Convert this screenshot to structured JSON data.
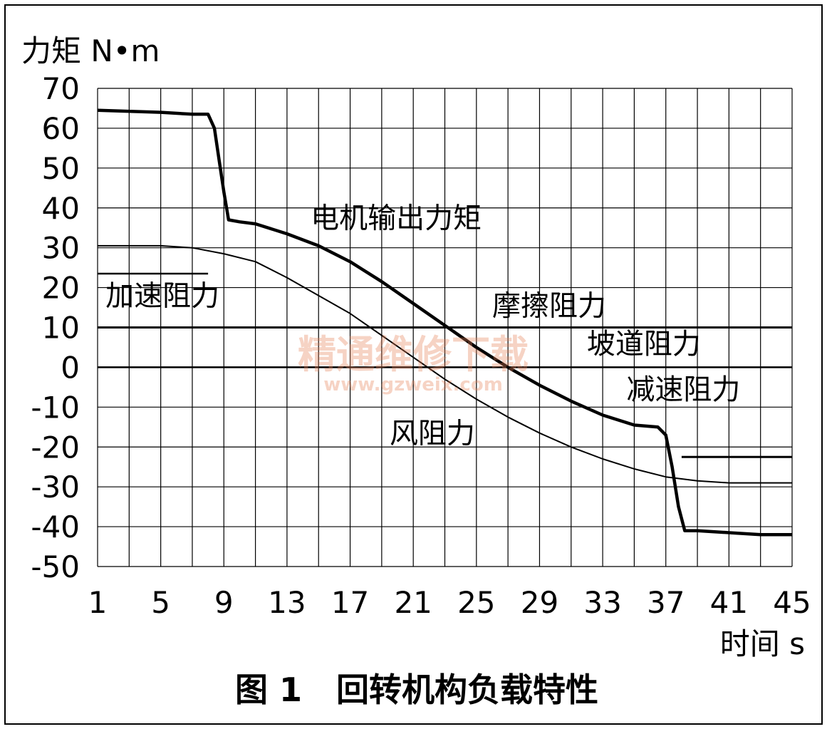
{
  "chart_data": {
    "type": "line",
    "caption": "图 1   回转机构负载特性",
    "ylabel": "力矩 N•m",
    "xlabel": "时间 s",
    "xlim": [
      1,
      45
    ],
    "ylim": [
      -50,
      70
    ],
    "xticks": [
      1,
      5,
      9,
      13,
      17,
      21,
      25,
      29,
      33,
      37,
      41,
      45
    ],
    "yticks": [
      70,
      60,
      50,
      40,
      30,
      20,
      10,
      0,
      -10,
      -20,
      -30,
      -40,
      -50
    ],
    "grid": true,
    "watermark": {
      "text": "精通维修下载",
      "url": "www.gzweix.com"
    },
    "series": [
      {
        "name": "电机输出力矩",
        "points": [
          [
            1,
            64.5
          ],
          [
            5,
            64
          ],
          [
            7,
            63.5
          ],
          [
            8,
            63.5
          ],
          [
            8.4,
            60
          ],
          [
            8.7,
            52
          ],
          [
            9,
            44
          ],
          [
            9.3,
            37
          ],
          [
            10,
            36.5
          ],
          [
            11,
            36
          ],
          [
            13,
            33.5
          ],
          [
            15,
            30.5
          ],
          [
            17,
            26.5
          ],
          [
            19,
            21.5
          ],
          [
            21,
            16
          ],
          [
            23,
            10.5
          ],
          [
            25,
            5
          ],
          [
            27,
            0
          ],
          [
            29,
            -4.5
          ],
          [
            31,
            -8.5
          ],
          [
            33,
            -12
          ],
          [
            35,
            -14.5
          ],
          [
            36.5,
            -15
          ],
          [
            37,
            -17
          ],
          [
            37.4,
            -25
          ],
          [
            37.8,
            -35
          ],
          [
            38.2,
            -41
          ],
          [
            39,
            -41
          ],
          [
            41,
            -41.5
          ],
          [
            43,
            -42
          ],
          [
            45,
            -42
          ]
        ]
      },
      {
        "name": "风阻力",
        "points": [
          [
            1,
            30.5
          ],
          [
            5,
            30.5
          ],
          [
            7,
            30
          ],
          [
            9,
            28.5
          ],
          [
            11,
            26.5
          ],
          [
            13,
            22.5
          ],
          [
            15,
            18
          ],
          [
            17,
            13.5
          ],
          [
            19,
            8
          ],
          [
            21,
            2.5
          ],
          [
            23,
            -3
          ],
          [
            25,
            -8
          ],
          [
            27,
            -12.5
          ],
          [
            29,
            -16.5
          ],
          [
            31,
            -20
          ],
          [
            33,
            -23
          ],
          [
            35,
            -25.5
          ],
          [
            37,
            -27.5
          ],
          [
            39,
            -28.5
          ],
          [
            41,
            -29
          ],
          [
            45,
            -29
          ]
        ]
      },
      {
        "name": "加速阻力",
        "points": [
          [
            1,
            23.5
          ],
          [
            8,
            23.5
          ]
        ]
      },
      {
        "name": "摩擦阻力",
        "points": [
          [
            1,
            10
          ],
          [
            45,
            10
          ]
        ]
      },
      {
        "name": "坡道阻力",
        "points": [
          [
            1,
            0
          ],
          [
            45,
            0
          ]
        ]
      },
      {
        "name": "减速阻力",
        "points": [
          [
            38,
            -22.5
          ],
          [
            45,
            -22.5
          ]
        ]
      }
    ],
    "annotations": [
      {
        "text": "电机输出力矩",
        "x": 14.5,
        "y": 35
      },
      {
        "text": "加速阻力",
        "x": 1.5,
        "y": 15.5
      },
      {
        "text": "摩擦阻力",
        "x": 26,
        "y": 13
      },
      {
        "text": "坡道阻力",
        "x": 32,
        "y": 3.5
      },
      {
        "text": "减速阻力",
        "x": 34.5,
        "y": -8
      },
      {
        "text": "风阻力",
        "x": 19.5,
        "y": -19
      }
    ]
  }
}
